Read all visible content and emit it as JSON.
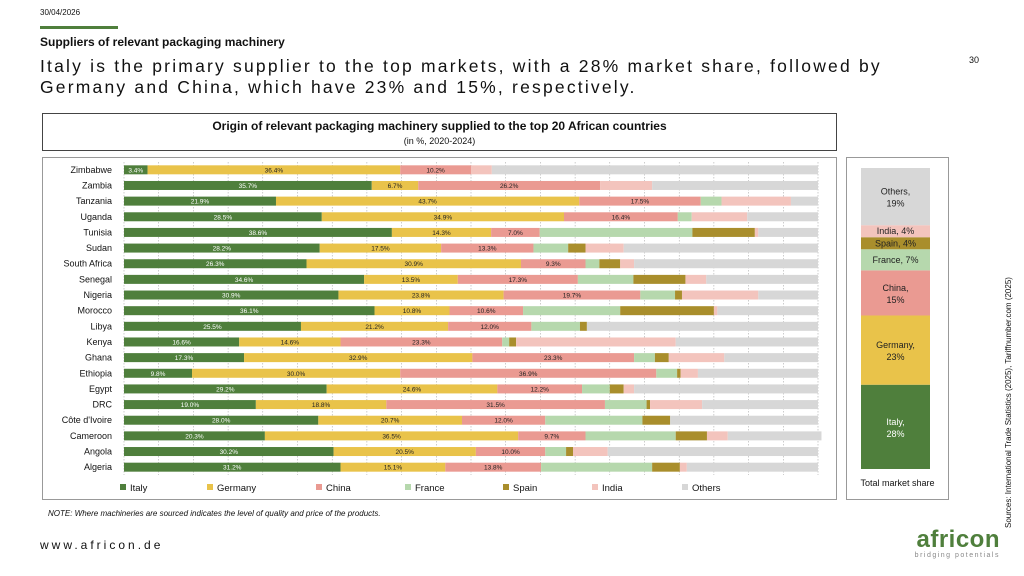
{
  "header": {
    "date": "30/04/2026",
    "section_title": "Suppliers of relevant packaging machinery",
    "page_number": "30",
    "headline": "Italy is the primary supplier to the top markets, with a 28% market share, followed by Germany and China, which have 23% and 15%, respectively."
  },
  "chart_title": "Origin of relevant packaging machinery supplied to the top 20 African countries",
  "chart_subtitle": "(in %, 2020-2024)",
  "colors": {
    "Italy": "#4f7f3c",
    "Germany": "#e9c34a",
    "China": "#ea9a92",
    "France": "#b6d8ad",
    "Spain": "#a98e2c",
    "India": "#f3c4bd",
    "Others": "#d7d7d7"
  },
  "chart_data": [
    {
      "type": "bar",
      "orientation": "horizontal",
      "stacked": true,
      "categories": [
        "Zimbabwe",
        "Zambia",
        "Tanzania",
        "Uganda",
        "Tunisia",
        "Sudan",
        "South Africa",
        "Senegal",
        "Nigeria",
        "Morocco",
        "Libya",
        "Kenya",
        "Ghana",
        "Ethiopia",
        "Egypt",
        "DRC",
        "Côte d'Ivoire",
        "Cameroon",
        "Angola",
        "Algeria"
      ],
      "series": [
        {
          "name": "Italy",
          "values": [
            3.4,
            35.7,
            21.9,
            28.5,
            38.6,
            28.2,
            26.3,
            34.6,
            30.9,
            36.1,
            25.5,
            16.6,
            17.3,
            9.8,
            29.2,
            19.0,
            28.0,
            20.3,
            30.2,
            31.2
          ]
        },
        {
          "name": "Germany",
          "values": [
            36.4,
            6.7,
            43.7,
            34.9,
            14.3,
            17.5,
            30.9,
            13.5,
            23.8,
            10.8,
            21.2,
            14.6,
            32.9,
            30.0,
            24.6,
            18.8,
            20.7,
            36.5,
            20.5,
            15.1
          ]
        },
        {
          "name": "China",
          "values": [
            10.2,
            26.2,
            17.5,
            16.4,
            7.0,
            13.3,
            9.3,
            17.3,
            19.7,
            10.6,
            12.0,
            23.3,
            23.3,
            36.9,
            12.2,
            31.5,
            12.0,
            9.7,
            10.0,
            13.8
          ]
        },
        {
          "name": "France",
          "values": [
            0,
            0,
            3,
            2,
            22,
            5,
            2,
            8,
            5,
            14,
            7,
            1,
            3,
            3,
            4,
            6,
            14,
            13,
            3,
            16
          ]
        },
        {
          "name": "Spain",
          "values": [
            0,
            0,
            0,
            0,
            9,
            2.5,
            3,
            7.5,
            1,
            13.5,
            1,
            1,
            2,
            0.5,
            2,
            0.5,
            4,
            4.5,
            1,
            4
          ]
        },
        {
          "name": "India",
          "values": [
            3,
            7.5,
            10,
            8,
            0.5,
            5.5,
            2,
            3,
            11,
            0.5,
            0,
            23,
            8,
            2.5,
            1.5,
            7.5,
            0,
            3,
            5,
            1
          ]
        },
        {
          "name": "Others",
          "values": [
            47,
            23.9,
            3.9,
            10.2,
            8.6,
            28,
            26.5,
            16.1,
            8.6,
            14.5,
            33.3,
            20.5,
            13.5,
            17.3,
            26.5,
            16.7,
            21.3,
            13.5,
            30.3,
            18.9
          ]
        }
      ],
      "data_labels": {
        "Italy": [
          "3.4%",
          "35.7%",
          "21.9%",
          "28.5%",
          "38.6%",
          "28.2%",
          "26.3%",
          "34.6%",
          "30.9%",
          "36.1%",
          "25.5%",
          "16.6%",
          "17.3%",
          "9.8%",
          "29.2%",
          "19.0%",
          "28.0%",
          "20.3%",
          "30.2%",
          "31.2%"
        ],
        "Germany": [
          "36.4%",
          "6.7%",
          "43.7%",
          "34.9%",
          "14.3%",
          "17.5%",
          "30.9%",
          "13.5%",
          "23.8%",
          "10.8%",
          "21.2%",
          "14.6%",
          "32.9%",
          "30.0%",
          "24.6%",
          "18.8%",
          "20.7%",
          "36.5%",
          "20.5%",
          "15.1%"
        ],
        "China": [
          "10.2%",
          "26.2%",
          "17.5%",
          "16.4%",
          "7.0%",
          "13.3%",
          "9.3%",
          "17.3%",
          "19.7%",
          "10.6%",
          "12.0%",
          "23.3%",
          "23.3%",
          "36.9%",
          "12.2%",
          "31.5%",
          "12.0%",
          "9.7%",
          "10.0%",
          "13.8%"
        ]
      },
      "xlim": [
        0,
        100
      ],
      "grid": true,
      "legend_position": "bottom"
    },
    {
      "type": "bar",
      "stacked": true,
      "categories": [
        "Total market share"
      ],
      "series": [
        {
          "name": "Italy",
          "value": 28,
          "label": "Italy, 28%"
        },
        {
          "name": "Germany",
          "value": 23,
          "label": "Germany, 23%"
        },
        {
          "name": "China",
          "value": 15,
          "label": "China, 15%"
        },
        {
          "name": "France",
          "value": 7,
          "label": "France, 7%"
        },
        {
          "name": "Spain",
          "value": 4,
          "label": "Spain, 4%"
        },
        {
          "name": "India",
          "value": 4,
          "label": "India, 4%"
        },
        {
          "name": "Others",
          "value": 19,
          "label": "Others, 19%"
        }
      ]
    }
  ],
  "legend": [
    "Italy",
    "Germany",
    "China",
    "France",
    "Spain",
    "India",
    "Others"
  ],
  "total_label": "Total market share",
  "note": "NOTE: Where machineries are sourced indicates the level of quality and price of the products.",
  "website": "www.africon.de",
  "sources": "Sources: International Trade Statistics (2025), Tariffnumber.com (2025)",
  "logo": {
    "word": "africon",
    "tagline": "bridging potentials"
  }
}
